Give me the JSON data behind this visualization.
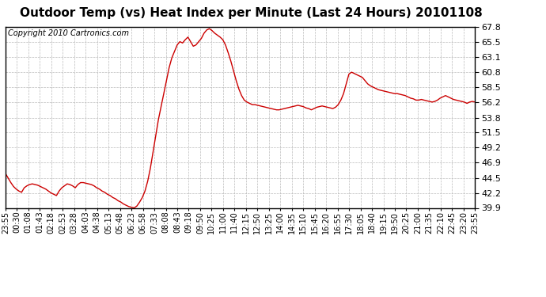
{
  "title": "Outdoor Temp (vs) Heat Index per Minute (Last 24 Hours) 20101108",
  "copyright_text": "Copyright 2010 Cartronics.com",
  "background_color": "#ffffff",
  "plot_bg_color": "#ffffff",
  "line_color": "#cc0000",
  "grid_color": "#bbbbbb",
  "ylim": [
    39.9,
    67.8
  ],
  "yticks": [
    39.9,
    42.2,
    44.5,
    46.9,
    49.2,
    51.5,
    53.8,
    56.2,
    58.5,
    60.8,
    63.1,
    65.5,
    67.8
  ],
  "xtick_labels": [
    "23:55",
    "00:30",
    "01:08",
    "01:43",
    "02:18",
    "02:53",
    "03:28",
    "04:03",
    "04:38",
    "05:13",
    "05:48",
    "06:23",
    "06:58",
    "07:33",
    "08:08",
    "08:43",
    "09:18",
    "09:50",
    "10:25",
    "11:00",
    "11:40",
    "12:15",
    "12:50",
    "13:25",
    "14:00",
    "14:35",
    "15:10",
    "15:45",
    "16:20",
    "16:55",
    "17:30",
    "18:05",
    "18:40",
    "19:15",
    "19:50",
    "20:25",
    "21:00",
    "21:35",
    "22:10",
    "22:45",
    "23:20",
    "23:55"
  ],
  "data_y": [
    45.2,
    44.5,
    43.8,
    43.2,
    42.8,
    42.5,
    42.3,
    43.0,
    43.3,
    43.5,
    43.6,
    43.5,
    43.4,
    43.2,
    43.0,
    42.8,
    42.5,
    42.2,
    42.0,
    41.8,
    42.5,
    43.0,
    43.3,
    43.6,
    43.5,
    43.3,
    43.0,
    43.5,
    43.8,
    43.8,
    43.7,
    43.6,
    43.5,
    43.3,
    43.0,
    42.8,
    42.5,
    42.3,
    42.0,
    41.8,
    41.5,
    41.3,
    41.0,
    40.8,
    40.5,
    40.3,
    40.1,
    40.0,
    39.9,
    40.2,
    40.8,
    41.5,
    42.5,
    44.0,
    46.0,
    48.5,
    51.0,
    53.5,
    55.5,
    57.5,
    59.5,
    61.5,
    63.0,
    64.0,
    65.0,
    65.5,
    65.3,
    65.8,
    66.2,
    65.5,
    64.8,
    65.0,
    65.5,
    66.0,
    66.8,
    67.3,
    67.5,
    67.2,
    66.8,
    66.5,
    66.2,
    65.8,
    65.0,
    63.8,
    62.5,
    61.0,
    59.5,
    58.2,
    57.2,
    56.5,
    56.2,
    56.0,
    55.8,
    55.8,
    55.7,
    55.6,
    55.5,
    55.4,
    55.3,
    55.2,
    55.1,
    55.0,
    55.0,
    55.1,
    55.2,
    55.3,
    55.4,
    55.5,
    55.6,
    55.7,
    55.6,
    55.5,
    55.3,
    55.2,
    55.0,
    55.2,
    55.4,
    55.5,
    55.6,
    55.5,
    55.4,
    55.3,
    55.2,
    55.4,
    55.8,
    56.5,
    57.5,
    59.0,
    60.5,
    60.8,
    60.6,
    60.4,
    60.2,
    60.0,
    59.5,
    59.0,
    58.7,
    58.5,
    58.3,
    58.1,
    58.0,
    57.9,
    57.8,
    57.7,
    57.6,
    57.5,
    57.5,
    57.4,
    57.3,
    57.2,
    57.0,
    56.8,
    56.7,
    56.5,
    56.5,
    56.6,
    56.5,
    56.4,
    56.3,
    56.2,
    56.3,
    56.5,
    56.8,
    57.0,
    57.2,
    57.0,
    56.8,
    56.6,
    56.5,
    56.4,
    56.3,
    56.2,
    56.0,
    56.2,
    56.3,
    56.2
  ],
  "title_fontsize": 11,
  "copyright_fontsize": 7,
  "tick_fontsize": 7,
  "ytick_fontsize": 8
}
